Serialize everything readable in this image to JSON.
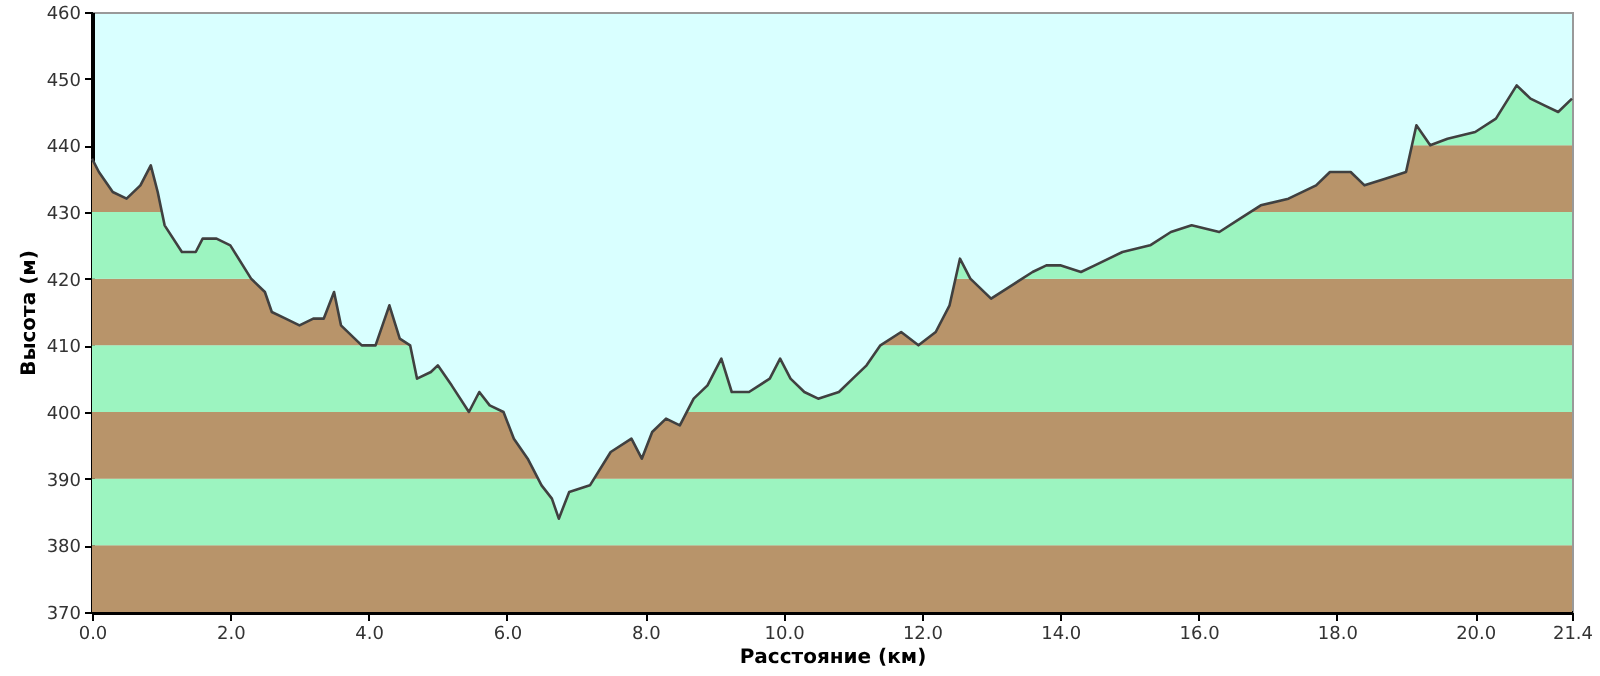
{
  "chart_data": {
    "type": "line",
    "xlabel": "Расстояние (км)",
    "ylabel": "Высота (м)",
    "x": [
      0.0,
      0.1,
      0.3,
      0.5,
      0.7,
      0.85,
      0.95,
      1.05,
      1.3,
      1.5,
      1.6,
      1.8,
      2.0,
      2.3,
      2.5,
      2.6,
      2.8,
      3.0,
      3.2,
      3.35,
      3.5,
      3.6,
      3.9,
      4.1,
      4.3,
      4.45,
      4.6,
      4.7,
      4.9,
      5.0,
      5.2,
      5.45,
      5.6,
      5.75,
      5.95,
      6.1,
      6.3,
      6.5,
      6.65,
      6.75,
      6.9,
      7.2,
      7.5,
      7.8,
      7.95,
      8.1,
      8.3,
      8.5,
      8.7,
      8.9,
      9.1,
      9.25,
      9.5,
      9.8,
      9.95,
      10.1,
      10.3,
      10.5,
      10.8,
      11.0,
      11.2,
      11.4,
      11.7,
      11.95,
      12.2,
      12.4,
      12.55,
      12.7,
      13.0,
      13.3,
      13.6,
      13.8,
      14.0,
      14.3,
      14.5,
      14.9,
      15.3,
      15.6,
      15.9,
      16.3,
      16.6,
      16.9,
      17.3,
      17.7,
      17.9,
      18.2,
      18.4,
      18.7,
      19.0,
      19.15,
      19.35,
      19.6,
      20.0,
      20.3,
      20.6,
      20.8,
      21.0,
      21.2,
      21.4
    ],
    "series": [
      {
        "color": "#404040",
        "values": [
          438,
          436,
          433,
          432,
          434,
          437,
          433,
          428,
          424,
          424,
          426,
          426,
          425,
          420,
          418,
          415,
          414,
          413,
          414,
          414,
          418,
          413,
          410,
          410,
          416,
          411,
          410,
          405,
          406,
          407,
          404,
          400,
          403,
          401,
          400,
          396,
          393,
          389,
          387,
          384,
          388,
          389,
          394,
          396,
          393,
          397,
          399,
          398,
          402,
          404,
          408,
          403,
          403,
          405,
          408,
          405,
          403,
          402,
          403,
          405,
          407,
          410,
          412,
          410,
          412,
          416,
          423,
          420,
          417,
          419,
          421,
          422,
          422,
          421,
          422,
          424,
          425,
          427,
          428,
          427,
          429,
          431,
          432,
          434,
          436,
          436,
          434,
          435,
          436,
          443,
          440,
          441,
          442,
          444,
          449,
          447,
          446,
          445,
          447
        ]
      }
    ],
    "xlim": [
      0,
      21.4
    ],
    "xticks": [
      {
        "value": 0,
        "label": "0.0"
      },
      {
        "value": 2,
        "label": "2.0"
      },
      {
        "value": 4,
        "label": "4.0"
      },
      {
        "value": 6,
        "label": "6.0"
      },
      {
        "value": 8,
        "label": "8.0"
      },
      {
        "value": 10,
        "label": "10.0"
      },
      {
        "value": 12,
        "label": "12.0"
      },
      {
        "value": 14,
        "label": "14.0"
      },
      {
        "value": 16,
        "label": "16.0"
      },
      {
        "value": 18,
        "label": "18.0"
      },
      {
        "value": 20,
        "label": "20.0"
      },
      21.4
    ],
    "ylim": [
      370,
      460
    ],
    "yticks": [
      370,
      380,
      390,
      400,
      410,
      420,
      430,
      440,
      450,
      460
    ],
    "bands": [
      {
        "axis": "y",
        "from": 370,
        "to": 380,
        "color": "#b8946a"
      },
      {
        "axis": "y",
        "from": 380,
        "to": 390,
        "color": "#9cf4c0"
      },
      {
        "axis": "y",
        "from": 390,
        "to": 400,
        "color": "#b8946a"
      },
      {
        "axis": "y",
        "from": 400,
        "to": 410,
        "color": "#9cf4c0"
      },
      {
        "axis": "y",
        "from": 410,
        "to": 420,
        "color": "#b8946a"
      },
      {
        "axis": "y",
        "from": 420,
        "to": 430,
        "color": "#9cf4c0"
      },
      {
        "axis": "y",
        "from": 430,
        "to": 440,
        "color": "#b8946a"
      },
      {
        "axis": "y",
        "from": 440,
        "to": 450,
        "color": "#9cf4c0"
      }
    ],
    "grid": false,
    "marker": "none",
    "line_style": "solid"
  }
}
